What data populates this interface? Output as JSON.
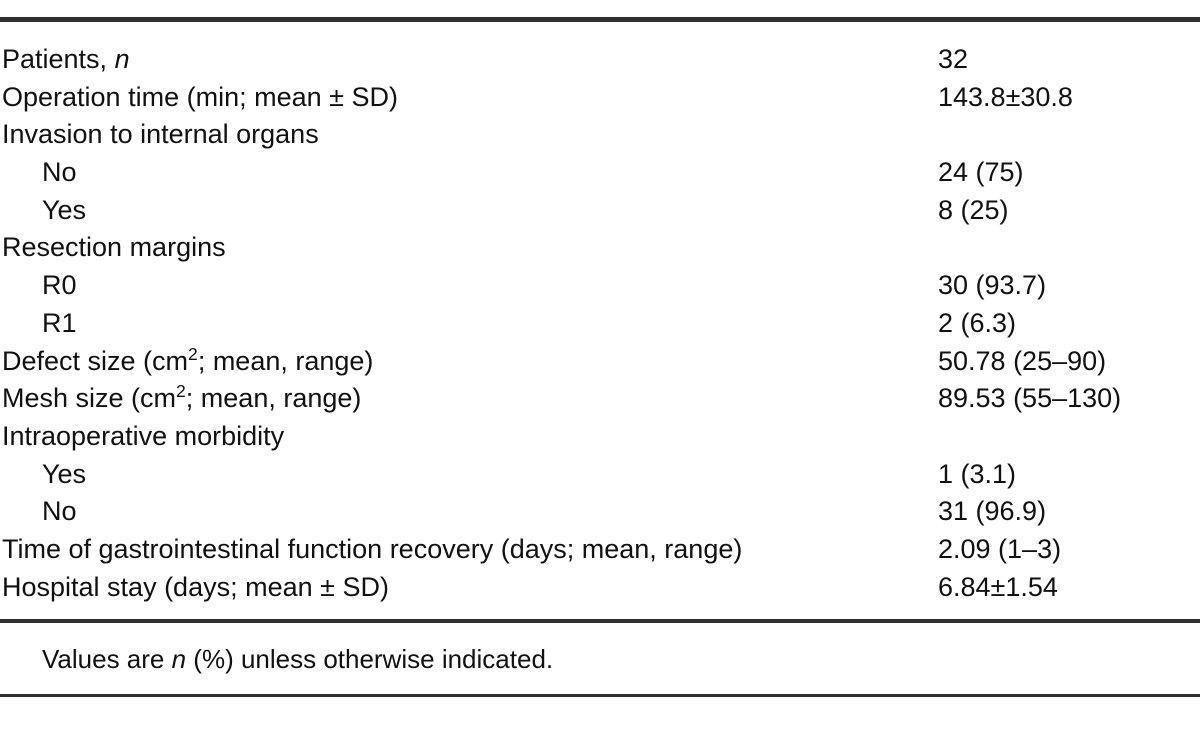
{
  "table": {
    "text_color": "#111111",
    "rule_color": "#2f2f2f",
    "rows": [
      {
        "label": "Patients, *n*",
        "value": "32",
        "indent": false
      },
      {
        "label": "Operation time (min; mean ± SD)",
        "value": "143.8±30.8",
        "indent": false
      },
      {
        "label": "Invasion to internal organs",
        "value": "",
        "indent": false
      },
      {
        "label": "No",
        "value": "24 (75)",
        "indent": true
      },
      {
        "label": "Yes",
        "value": "8 (25)",
        "indent": true
      },
      {
        "label": "Resection margins",
        "value": "",
        "indent": false
      },
      {
        "label": "R0",
        "value": "30 (93.7)",
        "indent": true
      },
      {
        "label": "R1",
        "value": "2 (6.3)",
        "indent": true
      },
      {
        "label": "Defect size (cm^2; mean, range)",
        "value": "50.78 (25–90)",
        "indent": false
      },
      {
        "label": "Mesh size (cm^2; mean, range)",
        "value": "89.53 (55–130)",
        "indent": false
      },
      {
        "label": "Intraoperative morbidity",
        "value": "",
        "indent": false
      },
      {
        "label": "Yes",
        "value": "1 (3.1)",
        "indent": true
      },
      {
        "label": "No",
        "value": "31 (96.9)",
        "indent": true
      },
      {
        "label": "Time of gastrointestinal function recovery (days; mean, range)",
        "value": "2.09 (1–3)",
        "indent": false
      },
      {
        "label": "Hospital stay (days; mean ± SD)",
        "value": "6.84±1.54",
        "indent": false
      }
    ],
    "footnote": "Values are *n* (%) unless otherwise indicated."
  }
}
